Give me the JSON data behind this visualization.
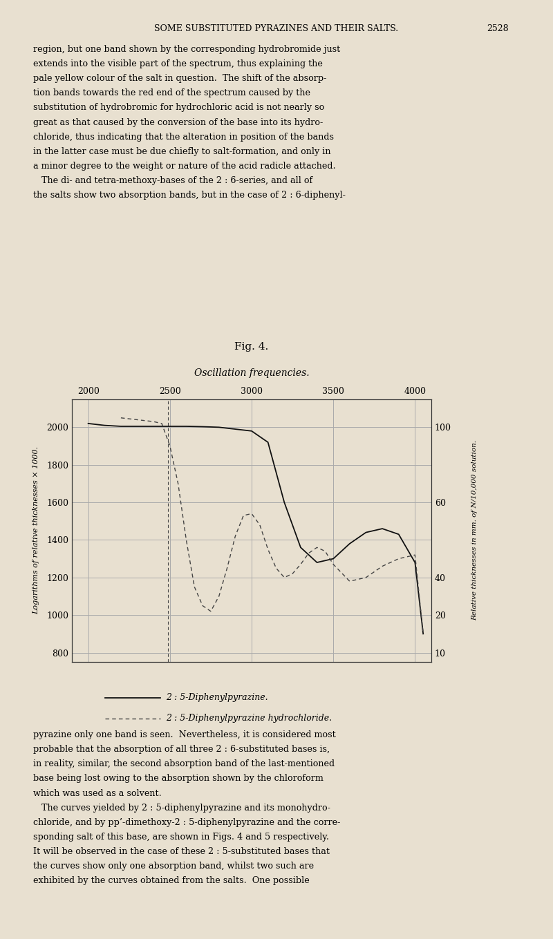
{
  "title": "Fig. 4.",
  "subtitle": "Oscillation frequencies.",
  "xlabel_ticks": [
    2000,
    2500,
    3000,
    3500,
    4000
  ],
  "ylabel_left_ticks": [
    800,
    1000,
    1200,
    1400,
    1600,
    1800,
    2000
  ],
  "xlim": [
    1900,
    4100
  ],
  "ylim": [
    750,
    2150
  ],
  "background_color": "#e8e0d0",
  "page_color": "#e8e0d0",
  "grid_color": "#aaaaaa",
  "curve_solid_color": "#111111",
  "curve_dashed_color": "#444444",
  "legend_solid": "2 : 5-Diphenylpyrazine.",
  "legend_dashed": "2 : 5-Diphenylpyrazine hydrochloride.",
  "left_ylabel": "Logarithms of relative thicknesses × 1000.",
  "right_ylabel": "Relative thicknesses in mm. of N/10,000 solution.",
  "solid_x": [
    2000,
    2100,
    2200,
    2300,
    2400,
    2500,
    2600,
    2700,
    2800,
    2900,
    3000,
    3100,
    3200,
    3300,
    3400,
    3500,
    3600,
    3700,
    3800,
    3900,
    4000,
    4050
  ],
  "solid_y": [
    2020,
    2010,
    2005,
    2005,
    2005,
    2005,
    2005,
    2003,
    2000,
    1990,
    1980,
    1920,
    1600,
    1360,
    1280,
    1300,
    1380,
    1440,
    1460,
    1430,
    1280,
    900
  ],
  "dashed_x": [
    2200,
    2300,
    2400,
    2450,
    2500,
    2550,
    2600,
    2650,
    2700,
    2750,
    2800,
    2850,
    2900,
    2950,
    3000,
    3050,
    3100,
    3150,
    3200,
    3250,
    3300,
    3350,
    3400,
    3450,
    3500,
    3600,
    3700,
    3800,
    3900,
    4000,
    4050
  ],
  "dashed_y": [
    2050,
    2040,
    2030,
    2020,
    1900,
    1700,
    1400,
    1150,
    1050,
    1020,
    1100,
    1250,
    1420,
    1530,
    1540,
    1480,
    1350,
    1250,
    1200,
    1220,
    1270,
    1330,
    1360,
    1340,
    1270,
    1180,
    1200,
    1260,
    1300,
    1320,
    900
  ],
  "right_tick_positions": [
    800,
    1000,
    1200,
    1600,
    2000
  ],
  "right_tick_labels": [
    "10",
    "20",
    "40",
    "60",
    "100"
  ],
  "header_title": "SOME SUBSTITUTED PYRAZINES AND THEIR SALTS.",
  "header_page": "2528",
  "body_upper": [
    "region, but one band shown by the corresponding hydrobromide just",
    "extends into the visible part of the spectrum, thus explaining the",
    "pale yellow colour of the salt in question.  The shift of the absorp-",
    "tion bands towards the red end of the spectrum caused by the",
    "substitution of hydrobromic for hydrochloric acid is not nearly so",
    "great as that caused by the conversion of the base into its hydro-",
    "chloride, thus indicating that the alteration in position of the bands",
    "in the latter case must be due chiefly to salt-formation, and only in",
    "a minor degree to the weight or nature of the acid radicle attached.",
    "   The di- and tetra-methoxy-bases of the 2 : 6-series, and all of",
    "the salts show two absorption bands, but in the case of 2 : 6-diphenyl-"
  ],
  "body_lower": [
    "pyrazine only one band is seen.  Nevertheless, it is considered most",
    "probable that the absorption of all three 2 : 6-substituted bases is,",
    "in reality, similar, the second absorption band of the last-mentioned",
    "base being lost owing to the absorption shown by the chloroform",
    "which was used as a solvent.",
    "   The curves yielded by 2 : 5-diphenylpyrazine and its monohydro-",
    "chloride, and by pp’-dimethoxy-2 : 5-diphenylpyrazine and the corre-",
    "sponding salt of this base, are shown in Figs. 4 and 5 respectively.",
    "It will be observed in the case of these 2 : 5-substituted bases that",
    "the curves show only one absorption band, whilst two such are",
    "exhibited by the curves obtained from the salts.  One possible"
  ]
}
